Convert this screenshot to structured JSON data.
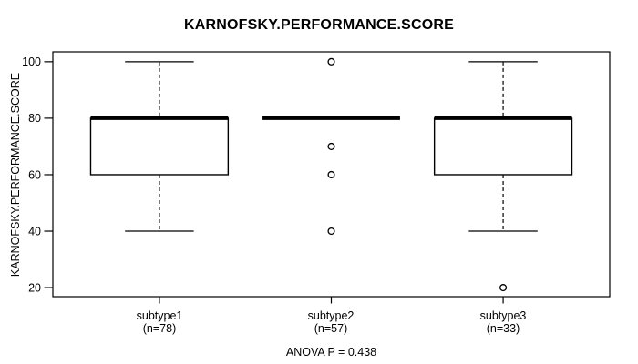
{
  "chart_data": {
    "type": "boxplot",
    "title": "KARNOFSKY.PERFORMANCE.SCORE",
    "ylabel": "KARNOFSKY.PERFORMANCE.SCORE",
    "yticks": [
      20,
      40,
      60,
      80,
      100
    ],
    "ylim": [
      16.8,
      103.5
    ],
    "grid": false,
    "annotation": "ANOVA P = 0.438",
    "groups": [
      {
        "label": "subtype1",
        "sublabel": "(n=78)",
        "n": 78,
        "whisker_low": 40,
        "q1": 60,
        "median": 80,
        "q3": 80,
        "whisker_high": 100,
        "outliers": []
      },
      {
        "label": "subtype2",
        "sublabel": "(n=57)",
        "n": 57,
        "whisker_low": 80,
        "q1": 80,
        "median": 80,
        "q3": 80,
        "whisker_high": 80,
        "outliers": [
          100,
          70,
          60,
          40
        ]
      },
      {
        "label": "subtype3",
        "sublabel": "(n=33)",
        "n": 33,
        "whisker_low": 40,
        "q1": 60,
        "median": 80,
        "q3": 80,
        "whisker_high": 100,
        "outliers": [
          20
        ]
      }
    ],
    "colors": {
      "line": "#000000",
      "box_fill": "#ffffff",
      "background": "#ffffff"
    }
  }
}
